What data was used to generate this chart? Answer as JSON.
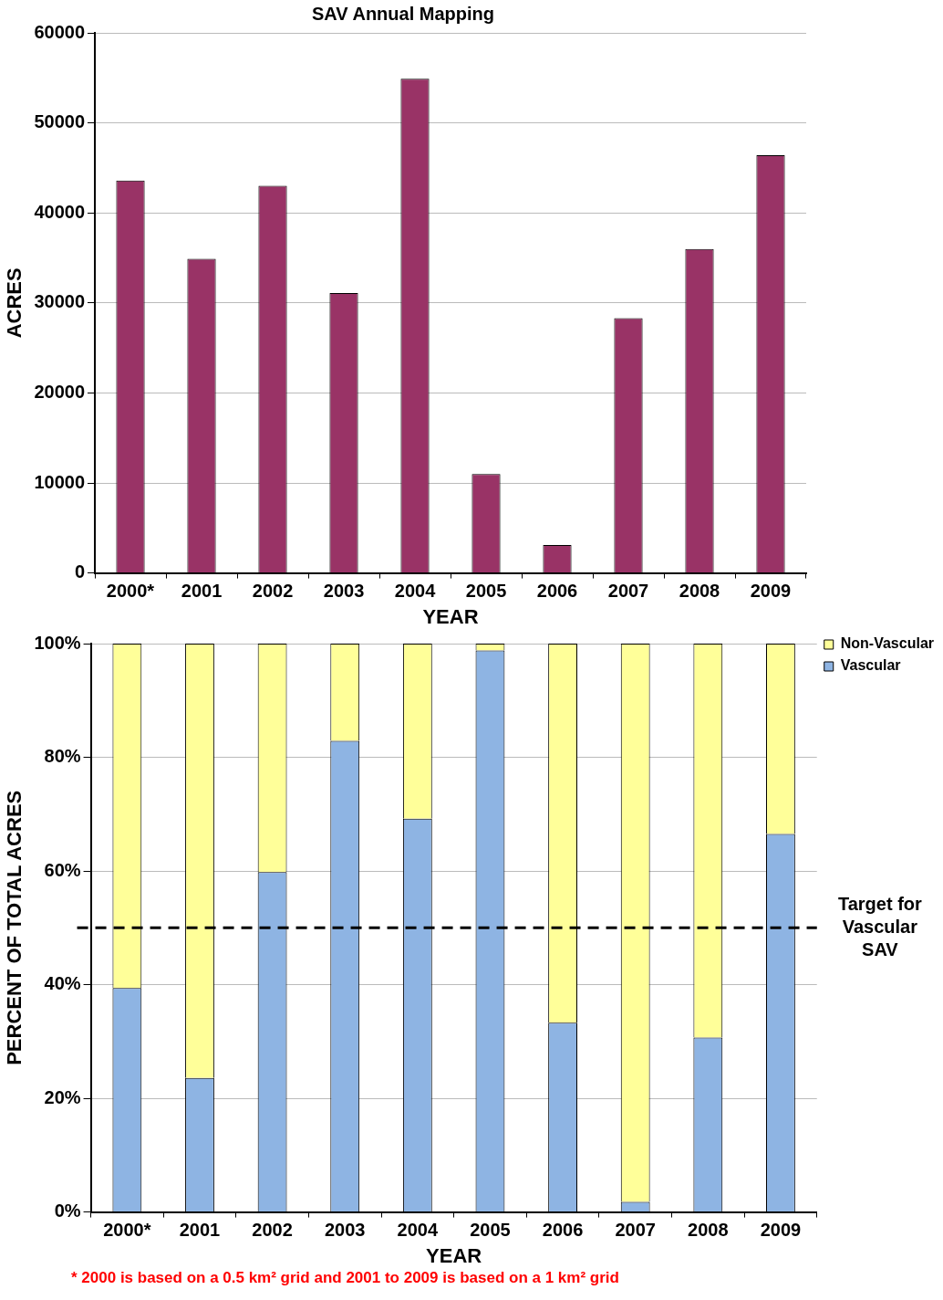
{
  "chart_data": [
    {
      "type": "bar",
      "title": "SAV Annual Mapping",
      "xlabel": "YEAR",
      "ylabel": "ACRES",
      "categories": [
        "2000*",
        "2001",
        "2002",
        "2003",
        "2004",
        "2005",
        "2006",
        "2007",
        "2008",
        "2009"
      ],
      "series": [
        {
          "color": "#993366",
          "values": [
            43600,
            34900,
            43000,
            31100,
            54900,
            11000,
            3100,
            28300,
            36000,
            46400
          ]
        }
      ],
      "ylim": [
        0,
        60000
      ],
      "yticks": [
        0,
        10000,
        20000,
        30000,
        40000,
        50000,
        60000
      ],
      "grid": "y",
      "legend": false
    },
    {
      "type": "bar",
      "stacked": true,
      "xlabel": "YEAR",
      "ylabel": "PERCENT OF TOTAL ACRES",
      "categories": [
        "2000*",
        "2001",
        "2002",
        "2003",
        "2004",
        "2005",
        "2006",
        "2007",
        "2008",
        "2009"
      ],
      "series": [
        {
          "name": "Vascular",
          "color": "#8eb4e3",
          "values": [
            39.4,
            23.6,
            59.8,
            82.9,
            69.2,
            98.8,
            33.3,
            1.8,
            30.7,
            66.5
          ]
        },
        {
          "name": "Non-Vascular",
          "color": "#ffff99",
          "values": [
            60.6,
            76.4,
            40.2,
            17.1,
            30.8,
            1.2,
            66.7,
            98.2,
            69.3,
            33.5
          ]
        }
      ],
      "ylim": [
        0,
        100
      ],
      "yticks": [
        {
          "value": 0,
          "label": "0%"
        },
        {
          "value": 20,
          "label": "20%"
        },
        {
          "value": 40,
          "label": "40%"
        },
        {
          "value": 60,
          "label": "60%"
        },
        {
          "value": 80,
          "label": "80%"
        },
        {
          "value": 100,
          "label": "100%"
        }
      ],
      "grid": "y",
      "legend": "right",
      "ref_lines": [
        {
          "axis": "y",
          "value": 50,
          "label": "Target for Vascular SAV",
          "color": "#000000",
          "line_style": "dashed"
        }
      ],
      "annotations": [
        "* 2000 is based on a 0.5 km² grid and 2001 to 2009 is based on a 1 km² grid"
      ]
    }
  ]
}
